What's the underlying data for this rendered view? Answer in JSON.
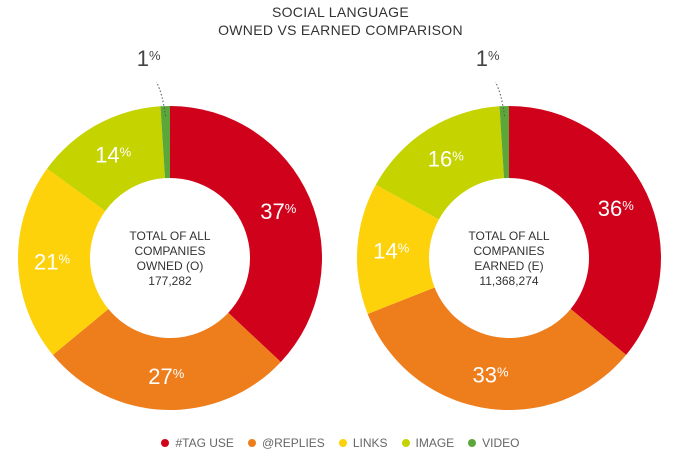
{
  "title_line1": "SOCIAL LANGUAGE",
  "title_line2": "OWNED VS EARNED COMPARISON",
  "chart_data": [
    {
      "type": "pie",
      "variant": "donut",
      "center_lines": [
        "TOTAL OF ALL",
        "COMPANIES",
        "OWNED (O)",
        "177,282"
      ],
      "categories": [
        "#TAG USE",
        "@REPLIES",
        "LINKS",
        "IMAGE",
        "VIDEO"
      ],
      "values": [
        37,
        27,
        21,
        14,
        1
      ],
      "value_suffix": "%"
    },
    {
      "type": "pie",
      "variant": "donut",
      "center_lines": [
        "TOTAL OF ALL",
        "COMPANIES",
        "EARNED (E)",
        "11,368,274"
      ],
      "categories": [
        "#TAG USE",
        "@REPLIES",
        "LINKS",
        "IMAGE",
        "VIDEO"
      ],
      "values": [
        36,
        33,
        14,
        16,
        1
      ],
      "value_suffix": "%"
    }
  ],
  "legend": [
    {
      "label": "#TAG USE",
      "color": "#d0021b"
    },
    {
      "label": "@REPLIES",
      "color": "#ee7d1c"
    },
    {
      "label": "LINKS",
      "color": "#fdd20a"
    },
    {
      "label": "IMAGE",
      "color": "#c5d300"
    },
    {
      "label": "VIDEO",
      "color": "#5ca73a"
    }
  ]
}
